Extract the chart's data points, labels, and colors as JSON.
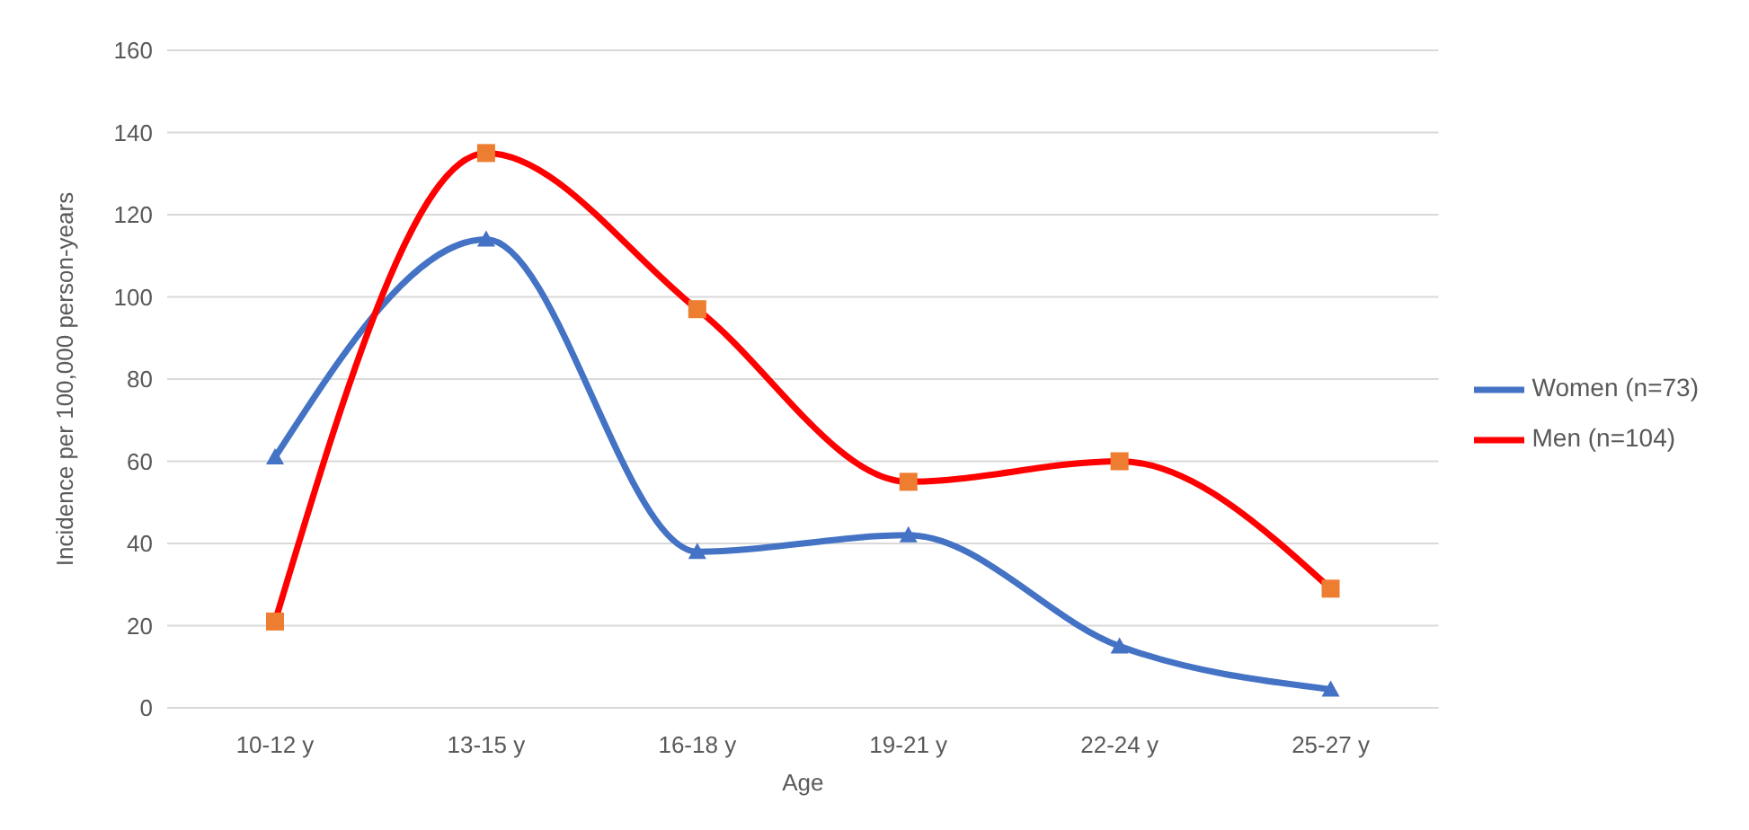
{
  "chart_data": {
    "type": "line",
    "xlabel": "Age",
    "ylabel": "Incidence per 100,000 person-years",
    "categories": [
      "10-12 y",
      "13-15 y",
      "16-18 y",
      "19-21 y",
      "22-24 y",
      "25-27 y"
    ],
    "series": [
      {
        "name": "Women (n=73)",
        "color": "#4472c4",
        "marker": "triangle",
        "values": [
          61,
          114,
          38,
          42,
          15,
          4.5
        ]
      },
      {
        "name": "Men (n=104)",
        "color": "#ff0000",
        "marker": "square",
        "colors": [
          "#ed7d31",
          "#ed7d31",
          "#ed7d31",
          "#ed7d31",
          "#ed7d31",
          "#ed7d31"
        ],
        "values": [
          21,
          135,
          97,
          55,
          60,
          29
        ]
      }
    ],
    "ylim": [
      0,
      160
    ],
    "yticks": [
      0,
      20,
      40,
      60,
      80,
      100,
      120,
      140,
      160
    ],
    "grid": "y",
    "legend": "right"
  }
}
